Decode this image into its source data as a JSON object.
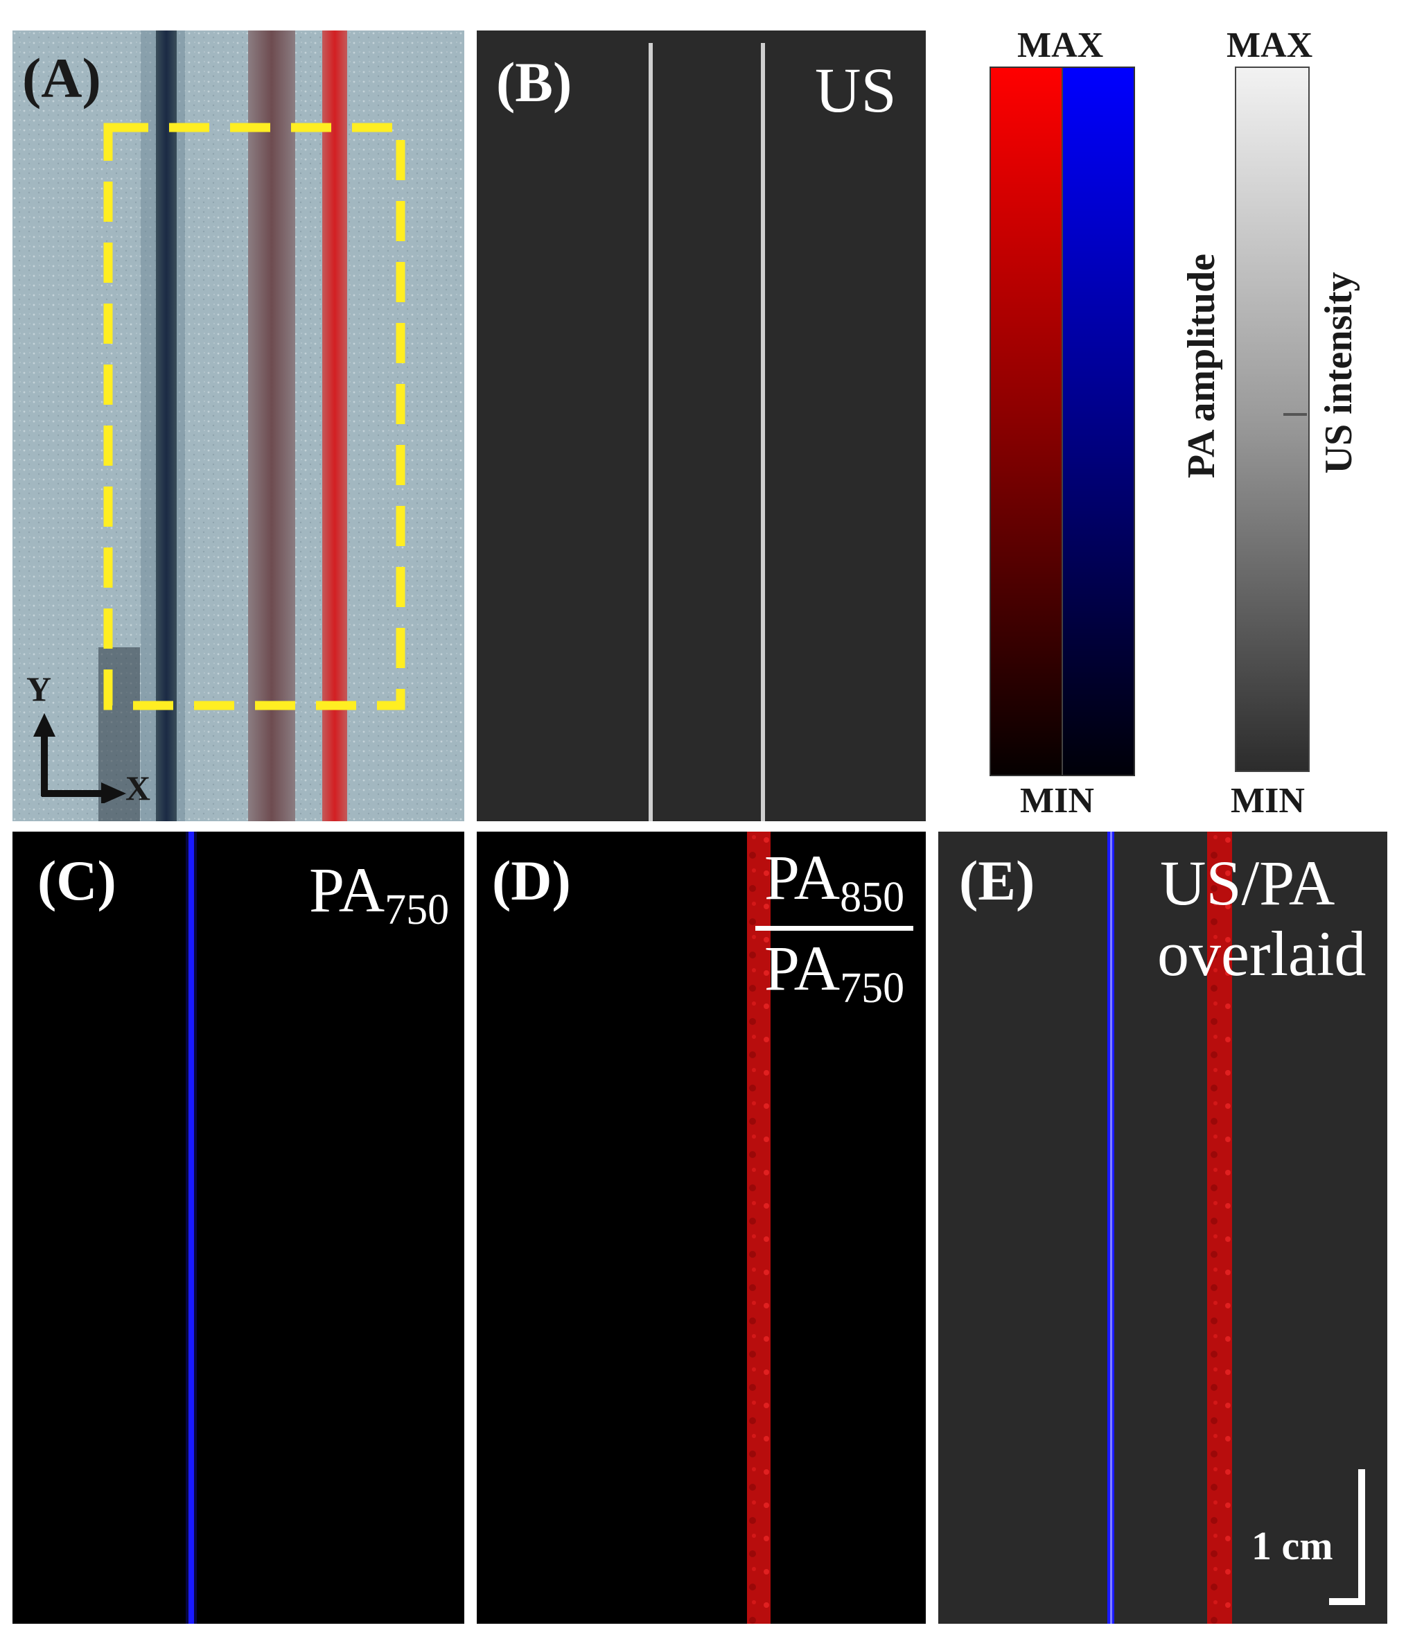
{
  "panels": {
    "a": {
      "label": "(A)",
      "axis_y": "Y",
      "axis_x": "X"
    },
    "b": {
      "label": "(B)",
      "title": "US"
    },
    "c": {
      "label": "(C)",
      "title_main": "PA",
      "title_sub": "750"
    },
    "d": {
      "label": "(D)",
      "num_main": "PA",
      "num_sub": "850",
      "den_main": "PA",
      "den_sub": "750"
    },
    "e": {
      "label": "(E)",
      "title_line1": "US/PA",
      "title_line2": "overlaid",
      "scale_label": "1 cm"
    }
  },
  "colorbars": {
    "pa": {
      "max": "MAX",
      "min": "MIN",
      "title": "PA amplitude"
    },
    "us": {
      "max": "MAX",
      "min": "MIN",
      "title": "US intensity"
    }
  },
  "colors": {
    "dark_bg": "#2a2a2a",
    "black_bg": "#000000",
    "pa_red": "#ff1010",
    "pa_blue": "#1a1aff",
    "roi_yellow": "#ffee22"
  }
}
